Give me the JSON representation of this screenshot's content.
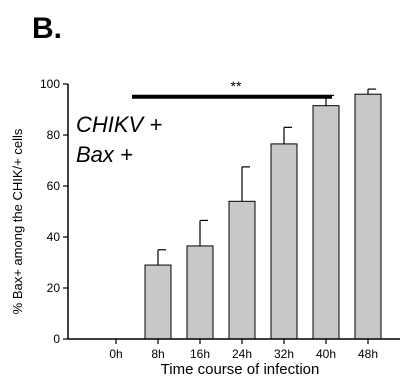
{
  "panel_label": "B.",
  "chart_data": {
    "type": "bar",
    "categories": [
      "0h",
      "8h",
      "16h",
      "24h",
      "32h",
      "40h",
      "48h"
    ],
    "values": [
      0,
      29,
      36.5,
      54,
      76.5,
      91.5,
      96
    ],
    "errors": [
      0,
      6,
      10,
      13.5,
      6.5,
      4,
      2
    ],
    "ylabel": "% Bax+ among the CHIK/+ cells",
    "xlabel": "Time course of infection",
    "ylim": [
      0,
      100
    ],
    "yticks": [
      0,
      20,
      40,
      60,
      80,
      100
    ],
    "bar_color": "#c8c8c8",
    "grid": false,
    "annotation_lines": [
      "CHIKV +",
      "Bax +"
    ],
    "significance": {
      "label": "**",
      "from_category": "8h",
      "to_category": "40h",
      "y": 95
    }
  }
}
